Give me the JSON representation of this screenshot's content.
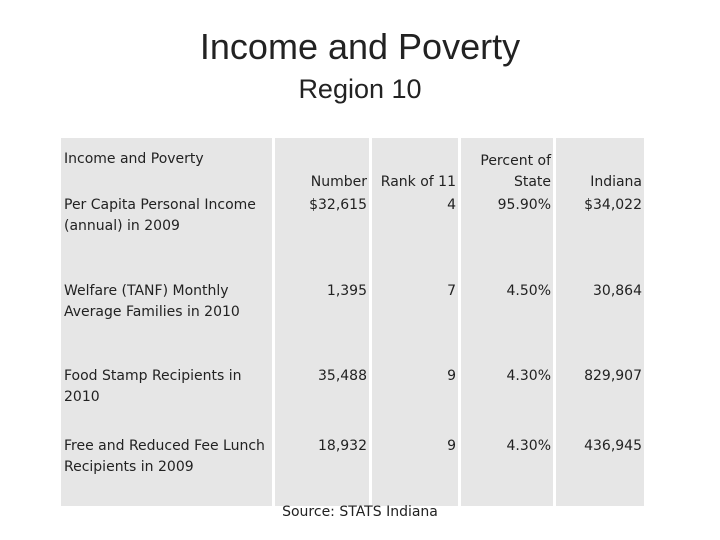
{
  "title": "Income and Poverty",
  "subtitle": "Region 10",
  "table": {
    "header": [
      "Income and Poverty",
      "Number",
      "Rank of 11",
      "Percent of State",
      "Indiana"
    ],
    "rows": [
      [
        "Per Capita Personal Income (annual) in 2009",
        "$32,615",
        "4",
        "95.90%",
        "$34,022"
      ],
      [
        "Welfare (TANF) Monthly Average Families in 2010",
        "1,395",
        "7",
        "4.50%",
        "30,864"
      ],
      [
        "Food Stamp Recipients in 2010",
        "35,488",
        "9",
        "4.30%",
        "829,907"
      ],
      [
        "Free and Reduced Fee Lunch Recipients in 2009",
        "18,932",
        "9",
        "4.30%",
        "436,945"
      ]
    ]
  },
  "source": "Source:  STATS Indiana"
}
